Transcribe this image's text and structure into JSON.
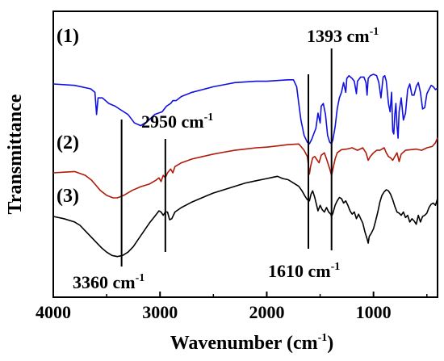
{
  "chart_data": {
    "type": "line",
    "xlabel": "Wavenumber (cm",
    "xlabel_sup": "-1",
    "xlabel_close": ")",
    "ylabel": "Transmittance",
    "xlim": [
      4000,
      400
    ],
    "x_reversed": true,
    "x_ticks": [
      4000,
      3000,
      2000,
      1000
    ],
    "x_tick_labels": [
      "4000",
      "3000",
      "2000",
      "1000"
    ],
    "grid": false,
    "series": [
      {
        "label": "(1)",
        "color": "#1010e0",
        "points": [
          [
            4000,
            94
          ],
          [
            3800,
            93
          ],
          [
            3650,
            90.5
          ],
          [
            3610,
            88
          ],
          [
            3595,
            72
          ],
          [
            3580,
            84
          ],
          [
            3540,
            84
          ],
          [
            3480,
            80
          ],
          [
            3420,
            78
          ],
          [
            3380,
            76
          ],
          [
            3300,
            72
          ],
          [
            3240,
            66
          ],
          [
            3180,
            64
          ],
          [
            3120,
            67
          ],
          [
            3050,
            72
          ],
          [
            2980,
            74
          ],
          [
            2940,
            78
          ],
          [
            2900,
            80
          ],
          [
            2880,
            82
          ],
          [
            2850,
            82
          ],
          [
            2800,
            85
          ],
          [
            2700,
            88
          ],
          [
            2600,
            90
          ],
          [
            2500,
            92
          ],
          [
            2400,
            93.5
          ],
          [
            2300,
            95
          ],
          [
            2200,
            95.5
          ],
          [
            2100,
            96
          ],
          [
            2000,
            96
          ],
          [
            1900,
            96.5
          ],
          [
            1800,
            97
          ],
          [
            1750,
            97
          ],
          [
            1720,
            92
          ],
          [
            1700,
            80
          ],
          [
            1680,
            68
          ],
          [
            1650,
            57
          ],
          [
            1620,
            52
          ],
          [
            1600,
            51
          ],
          [
            1580,
            54
          ],
          [
            1560,
            58
          ],
          [
            1540,
            62
          ],
          [
            1520,
            73
          ],
          [
            1500,
            66
          ],
          [
            1490,
            78
          ],
          [
            1470,
            80
          ],
          [
            1450,
            72
          ],
          [
            1430,
            57
          ],
          [
            1410,
            52
          ],
          [
            1393,
            51
          ],
          [
            1380,
            54
          ],
          [
            1360,
            63
          ],
          [
            1340,
            76
          ],
          [
            1320,
            84
          ],
          [
            1300,
            88
          ],
          [
            1280,
            95
          ],
          [
            1260,
            88
          ],
          [
            1250,
            98
          ],
          [
            1230,
            100
          ],
          [
            1200,
            98
          ],
          [
            1180,
            96
          ],
          [
            1160,
            87
          ],
          [
            1150,
            96
          ],
          [
            1120,
            99
          ],
          [
            1090,
            99
          ],
          [
            1070,
            95
          ],
          [
            1060,
            86
          ],
          [
            1050,
            98
          ],
          [
            1030,
            100
          ],
          [
            1000,
            101
          ],
          [
            970,
            100
          ],
          [
            950,
            95
          ],
          [
            930,
            84
          ],
          [
            910,
            99
          ],
          [
            895,
            100
          ],
          [
            880,
            96
          ],
          [
            860,
            80
          ],
          [
            845,
            74
          ],
          [
            830,
            88
          ],
          [
            820,
            60
          ],
          [
            810,
            58
          ],
          [
            800,
            72
          ],
          [
            790,
            80
          ],
          [
            780,
            64
          ],
          [
            770,
            55
          ],
          [
            760,
            74
          ],
          [
            740,
            84
          ],
          [
            720,
            68
          ],
          [
            700,
            73
          ],
          [
            680,
            90
          ],
          [
            660,
            94
          ],
          [
            640,
            86
          ],
          [
            620,
            86
          ],
          [
            600,
            92
          ],
          [
            580,
            95
          ],
          [
            560,
            88
          ],
          [
            540,
            76
          ],
          [
            520,
            77
          ],
          [
            500,
            87
          ],
          [
            480,
            90
          ],
          [
            460,
            93
          ],
          [
            440,
            92
          ],
          [
            420,
            90
          ],
          [
            400,
            91
          ]
        ]
      },
      {
        "label": "(2)",
        "color": "#b01a0a",
        "points": [
          [
            4000,
            42
          ],
          [
            3900,
            42.5
          ],
          [
            3800,
            43
          ],
          [
            3700,
            40
          ],
          [
            3640,
            36
          ],
          [
            3600,
            32
          ],
          [
            3560,
            28
          ],
          [
            3500,
            24
          ],
          [
            3440,
            22
          ],
          [
            3400,
            22
          ],
          [
            3340,
            24
          ],
          [
            3260,
            28
          ],
          [
            3180,
            31
          ],
          [
            3100,
            33
          ],
          [
            3040,
            36
          ],
          [
            3010,
            38
          ],
          [
            2990,
            35
          ],
          [
            2970,
            40
          ],
          [
            2950,
            38
          ],
          [
            2930,
            42
          ],
          [
            2900,
            45
          ],
          [
            2880,
            42
          ],
          [
            2860,
            47
          ],
          [
            2800,
            50
          ],
          [
            2700,
            53
          ],
          [
            2600,
            55
          ],
          [
            2500,
            57
          ],
          [
            2400,
            58.5
          ],
          [
            2300,
            60
          ],
          [
            2200,
            61
          ],
          [
            2100,
            62
          ],
          [
            2000,
            62.5
          ],
          [
            1900,
            63.5
          ],
          [
            1800,
            64.5
          ],
          [
            1700,
            65
          ],
          [
            1680,
            63
          ],
          [
            1650,
            60
          ],
          [
            1620,
            55
          ],
          [
            1600,
            41
          ],
          [
            1590,
            47
          ],
          [
            1570,
            54
          ],
          [
            1550,
            55
          ],
          [
            1510,
            50
          ],
          [
            1490,
            56
          ],
          [
            1460,
            58
          ],
          [
            1440,
            53
          ],
          [
            1410,
            45
          ],
          [
            1393,
            40
          ],
          [
            1380,
            45
          ],
          [
            1360,
            53
          ],
          [
            1340,
            58
          ],
          [
            1300,
            60.5
          ],
          [
            1250,
            61
          ],
          [
            1200,
            62
          ],
          [
            1150,
            60
          ],
          [
            1100,
            62
          ],
          [
            1070,
            58
          ],
          [
            1050,
            52
          ],
          [
            1030,
            55
          ],
          [
            1000,
            58
          ],
          [
            970,
            60
          ],
          [
            940,
            60
          ],
          [
            900,
            62
          ],
          [
            880,
            58
          ],
          [
            860,
            55
          ],
          [
            840,
            54
          ],
          [
            820,
            52
          ],
          [
            800,
            55
          ],
          [
            780,
            58
          ],
          [
            760,
            51
          ],
          [
            740,
            57
          ],
          [
            700,
            60
          ],
          [
            650,
            60.5
          ],
          [
            600,
            61
          ],
          [
            550,
            60
          ],
          [
            500,
            62
          ],
          [
            450,
            63
          ],
          [
            420,
            66
          ],
          [
            400,
            70
          ]
        ]
      },
      {
        "label": "(3)",
        "color": "#000000",
        "points": [
          [
            4000,
            10
          ],
          [
            3900,
            8
          ],
          [
            3800,
            5
          ],
          [
            3750,
            2
          ],
          [
            3700,
            -3
          ],
          [
            3650,
            -8
          ],
          [
            3600,
            -13
          ],
          [
            3550,
            -18
          ],
          [
            3500,
            -22
          ],
          [
            3450,
            -25
          ],
          [
            3400,
            -26
          ],
          [
            3350,
            -25
          ],
          [
            3300,
            -22
          ],
          [
            3250,
            -17
          ],
          [
            3200,
            -10
          ],
          [
            3150,
            -3
          ],
          [
            3100,
            4
          ],
          [
            3050,
            10
          ],
          [
            3010,
            15
          ],
          [
            2990,
            14
          ],
          [
            2970,
            11
          ],
          [
            2950,
            14
          ],
          [
            2930,
            14
          ],
          [
            2910,
            7
          ],
          [
            2890,
            8
          ],
          [
            2860,
            14
          ],
          [
            2800,
            18
          ],
          [
            2700,
            23
          ],
          [
            2600,
            27
          ],
          [
            2500,
            31
          ],
          [
            2400,
            34
          ],
          [
            2300,
            37
          ],
          [
            2200,
            40
          ],
          [
            2100,
            42
          ],
          [
            2000,
            44
          ],
          [
            1950,
            45
          ],
          [
            1900,
            46
          ],
          [
            1850,
            44
          ],
          [
            1800,
            43
          ],
          [
            1750,
            40
          ],
          [
            1700,
            37
          ],
          [
            1670,
            33
          ],
          [
            1640,
            28
          ],
          [
            1620,
            25
          ],
          [
            1600,
            24
          ],
          [
            1585,
            30
          ],
          [
            1570,
            33
          ],
          [
            1550,
            27
          ],
          [
            1520,
            15
          ],
          [
            1500,
            20
          ],
          [
            1480,
            16
          ],
          [
            1460,
            14
          ],
          [
            1440,
            18
          ],
          [
            1420,
            14
          ],
          [
            1400,
            12
          ],
          [
            1393,
            10
          ],
          [
            1380,
            13
          ],
          [
            1360,
            20
          ],
          [
            1340,
            24
          ],
          [
            1320,
            27
          ],
          [
            1300,
            26
          ],
          [
            1280,
            22
          ],
          [
            1260,
            24
          ],
          [
            1240,
            20
          ],
          [
            1220,
            15
          ],
          [
            1200,
            12
          ],
          [
            1180,
            14
          ],
          [
            1160,
            8
          ],
          [
            1140,
            12
          ],
          [
            1120,
            8
          ],
          [
            1100,
            4
          ],
          [
            1080,
            -4
          ],
          [
            1060,
            -10
          ],
          [
            1050,
            -14
          ],
          [
            1040,
            -8
          ],
          [
            1020,
            -5
          ],
          [
            1000,
            -1
          ],
          [
            980,
            6
          ],
          [
            960,
            14
          ],
          [
            940,
            23
          ],
          [
            920,
            29
          ],
          [
            900,
            32
          ],
          [
            880,
            34
          ],
          [
            860,
            33
          ],
          [
            840,
            30
          ],
          [
            820,
            25
          ],
          [
            800,
            19
          ],
          [
            780,
            14
          ],
          [
            760,
            13
          ],
          [
            740,
            11
          ],
          [
            720,
            14
          ],
          [
            700,
            9
          ],
          [
            680,
            11
          ],
          [
            660,
            5
          ],
          [
            640,
            8
          ],
          [
            620,
            6
          ],
          [
            600,
            3
          ],
          [
            580,
            11
          ],
          [
            560,
            5
          ],
          [
            540,
            10
          ],
          [
            520,
            11
          ],
          [
            500,
            13
          ],
          [
            480,
            18
          ],
          [
            460,
            21
          ],
          [
            440,
            22
          ],
          [
            420,
            20
          ],
          [
            400,
            26
          ]
        ]
      }
    ],
    "annotations": [
      {
        "text": "3360 cm",
        "sup": "-1",
        "wavenumber": 3360
      },
      {
        "text": "2950 cm",
        "sup": "-1",
        "wavenumber": 2950
      },
      {
        "text": "1610 cm",
        "sup": "-1",
        "wavenumber": 1610
      },
      {
        "text": "1393 cm",
        "sup": "-1",
        "wavenumber": 1393
      }
    ]
  }
}
